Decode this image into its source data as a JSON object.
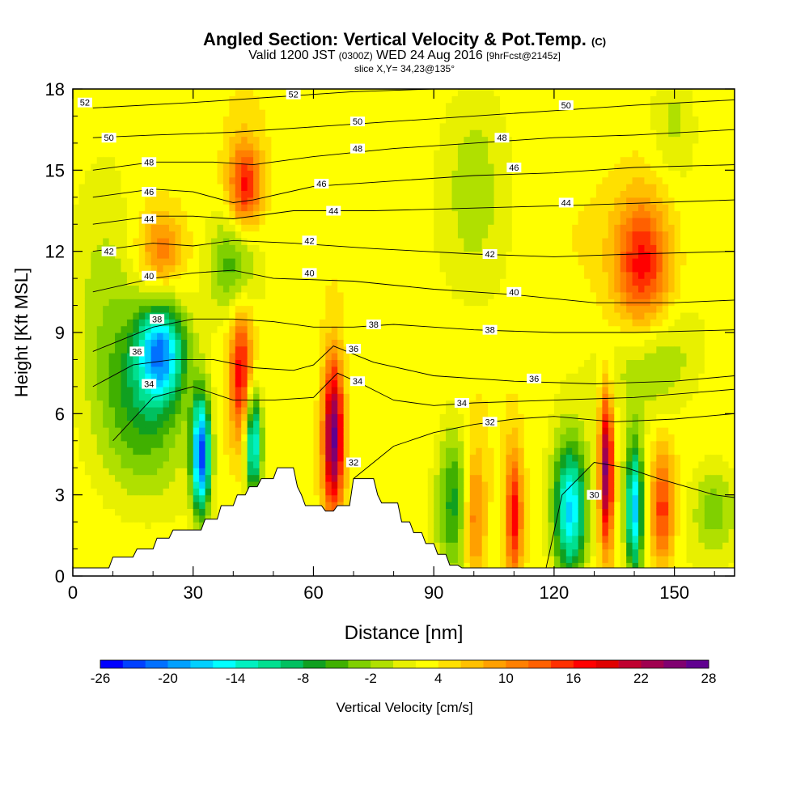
{
  "title": {
    "main": "Angled Section: Vertical Velocity & Pot.Temp.",
    "main_tag": "(C)",
    "valid_label": "Valid 1200 JST",
    "valid_tag": "(0300Z)",
    "valid_date": "WED 24 Aug 2016",
    "forecast_tag": "[9hrFcst@2145z]",
    "slice": "slice X,Y= 34,23@135°"
  },
  "chart_data": {
    "type": "heatmap",
    "xlabel": "Distance [nm]",
    "ylabel": "Height [Kft MSL]",
    "xlim": [
      0,
      165
    ],
    "ylim": [
      0,
      18
    ],
    "x_ticks": [
      0,
      30,
      60,
      90,
      120,
      150
    ],
    "y_ticks": [
      0,
      3,
      6,
      9,
      12,
      15,
      18
    ],
    "colorbar": {
      "label": "Vertical Velocity [cm/s]",
      "ticks": [
        -26,
        -20,
        -14,
        -8,
        -2,
        4,
        10,
        16,
        22,
        28
      ],
      "colors": [
        "#0000ff",
        "#0040ff",
        "#0070ff",
        "#00a0ff",
        "#00d0ff",
        "#00ffff",
        "#00f0c0",
        "#00e090",
        "#00c060",
        "#10a020",
        "#40b000",
        "#80d000",
        "#b0e000",
        "#e8f000",
        "#ffff00",
        "#ffe000",
        "#ffc000",
        "#ffa000",
        "#ff8000",
        "#ff6000",
        "#ff3000",
        "#ff0000",
        "#e00000",
        "#c00030",
        "#a00050",
        "#800070",
        "#600090"
      ]
    },
    "terrain_kft": [
      [
        0,
        0.3
      ],
      [
        9,
        0.3
      ],
      [
        10,
        0.7
      ],
      [
        15,
        0.7
      ],
      [
        16,
        1
      ],
      [
        20,
        1
      ],
      [
        21,
        1.4
      ],
      [
        24,
        1.4
      ],
      [
        25,
        1.7
      ],
      [
        32,
        1.7
      ],
      [
        33,
        2.1
      ],
      [
        36,
        2.1
      ],
      [
        37,
        2.6
      ],
      [
        40,
        2.6
      ],
      [
        41,
        3
      ],
      [
        43,
        3
      ],
      [
        44,
        3.3
      ],
      [
        46,
        3.3
      ],
      [
        47,
        3.6
      ],
      [
        50,
        3.6
      ],
      [
        51,
        4
      ],
      [
        55,
        4
      ],
      [
        56,
        3.3
      ],
      [
        57,
        3
      ],
      [
        58,
        2.6
      ],
      [
        62,
        2.6
      ],
      [
        63,
        2.4
      ],
      [
        65,
        2.4
      ],
      [
        66,
        2.6
      ],
      [
        69,
        2.6
      ],
      [
        70,
        3.6
      ],
      [
        75,
        3.6
      ],
      [
        76,
        3
      ],
      [
        77,
        2.7
      ],
      [
        81,
        2.7
      ],
      [
        82,
        2
      ],
      [
        84,
        2
      ],
      [
        85,
        1.6
      ],
      [
        87,
        1.6
      ],
      [
        88,
        1.2
      ],
      [
        90,
        1.2
      ],
      [
        91,
        0.8
      ],
      [
        93,
        0.8
      ],
      [
        94,
        0.4
      ],
      [
        96,
        0.4
      ],
      [
        97,
        0.3
      ],
      [
        165,
        0.3
      ]
    ],
    "velocity_cells": [
      {
        "x": 22,
        "y": 8.3,
        "v": -18,
        "sx": 4,
        "sy": 1.2
      },
      {
        "x": 18,
        "y": 6.5,
        "v": -9,
        "sx": 8,
        "sy": 2.5
      },
      {
        "x": 32,
        "y": 4.5,
        "v": -26,
        "sx": 1.6,
        "sy": 1.5
      },
      {
        "x": 45,
        "y": 5,
        "v": -20,
        "sx": 1.5,
        "sy": 1.4
      },
      {
        "x": 40,
        "y": 11.5,
        "v": -8,
        "sx": 4,
        "sy": 1.3
      },
      {
        "x": 95,
        "y": 2.8,
        "v": -10,
        "sx": 3,
        "sy": 2
      },
      {
        "x": 124,
        "y": 2.4,
        "v": -20,
        "sx": 3,
        "sy": 1.8
      },
      {
        "x": 140,
        "y": 2.5,
        "v": -20,
        "sx": 1.6,
        "sy": 1.8
      },
      {
        "x": 145,
        "y": 8,
        "v": -6,
        "sx": 8,
        "sy": 1.5
      },
      {
        "x": 160,
        "y": 2.5,
        "v": -6,
        "sx": 4,
        "sy": 1.2
      },
      {
        "x": 43,
        "y": 14.4,
        "v": 14,
        "sx": 3,
        "sy": 1.2
      },
      {
        "x": 42,
        "y": 7.5,
        "v": 14,
        "sx": 2,
        "sy": 1.8
      },
      {
        "x": 65,
        "y": 5.2,
        "v": 24,
        "sx": 1.8,
        "sy": 2
      },
      {
        "x": 110,
        "y": 2.2,
        "v": 14,
        "sx": 1.5,
        "sy": 1.8
      },
      {
        "x": 100,
        "y": 2.2,
        "v": 10,
        "sx": 2,
        "sy": 1.8
      },
      {
        "x": 133,
        "y": 4,
        "v": 22,
        "sx": 1.2,
        "sy": 2
      },
      {
        "x": 142,
        "y": 11.5,
        "v": 14,
        "sx": 5,
        "sy": 1.8
      },
      {
        "x": 147,
        "y": 2.5,
        "v": 12,
        "sx": 2,
        "sy": 1.5
      },
      {
        "x": 22,
        "y": 12,
        "v": 8,
        "sx": 4,
        "sy": 1
      },
      {
        "x": 8,
        "y": 11,
        "v": -4,
        "sx": 6,
        "sy": 3
      },
      {
        "x": 100,
        "y": 15,
        "v": -4,
        "sx": 6,
        "sy": 3
      },
      {
        "x": 150,
        "y": 17,
        "v": -4,
        "sx": 4,
        "sy": 1.5
      }
    ],
    "isentropes": [
      {
        "label": "30",
        "points": [
          [
            118,
            0.3
          ],
          [
            122,
            3
          ],
          [
            130,
            4.2
          ],
          [
            138,
            4
          ],
          [
            146,
            3.6
          ],
          [
            160,
            3
          ],
          [
            165,
            2.9
          ]
        ]
      },
      {
        "label": "32",
        "points": [
          [
            70,
            3.6
          ],
          [
            80,
            4.8
          ],
          [
            90,
            5.3
          ],
          [
            100,
            5.6
          ],
          [
            110,
            5.8
          ],
          [
            120,
            5.9
          ],
          [
            135,
            5.7
          ],
          [
            150,
            5.8
          ],
          [
            165,
            6
          ]
        ]
      },
      {
        "label": "34",
        "points": [
          [
            10,
            5
          ],
          [
            20,
            6.6
          ],
          [
            30,
            7
          ],
          [
            40,
            6.5
          ],
          [
            50,
            6.5
          ],
          [
            60,
            6.6
          ],
          [
            66,
            7.5
          ],
          [
            72,
            7.1
          ],
          [
            80,
            6.5
          ],
          [
            90,
            6.3
          ],
          [
            100,
            6.4
          ],
          [
            120,
            6.5
          ],
          [
            140,
            6.6
          ],
          [
            165,
            6.9
          ]
        ]
      },
      {
        "label": "36",
        "points": [
          [
            5,
            7
          ],
          [
            15,
            7.8
          ],
          [
            25,
            8
          ],
          [
            35,
            8
          ],
          [
            45,
            7.7
          ],
          [
            55,
            7.6
          ],
          [
            60,
            7.8
          ],
          [
            65,
            8.5
          ],
          [
            75,
            7.9
          ],
          [
            90,
            7.4
          ],
          [
            110,
            7.2
          ],
          [
            130,
            7.1
          ],
          [
            150,
            7.2
          ],
          [
            165,
            7.4
          ]
        ]
      },
      {
        "label": "38",
        "points": [
          [
            5,
            8.3
          ],
          [
            20,
            9.2
          ],
          [
            30,
            9.5
          ],
          [
            40,
            9.5
          ],
          [
            50,
            9.4
          ],
          [
            60,
            9.2
          ],
          [
            70,
            9.2
          ],
          [
            80,
            9.3
          ],
          [
            100,
            9.1
          ],
          [
            120,
            9
          ],
          [
            140,
            9
          ],
          [
            165,
            9.1
          ]
        ]
      },
      {
        "label": "40",
        "points": [
          [
            5,
            10.5
          ],
          [
            20,
            11
          ],
          [
            30,
            11.2
          ],
          [
            40,
            11.3
          ],
          [
            50,
            11
          ],
          [
            70,
            10.9
          ],
          [
            90,
            10.6
          ],
          [
            110,
            10.4
          ],
          [
            130,
            10.1
          ],
          [
            150,
            10.1
          ],
          [
            165,
            10.2
          ]
        ]
      },
      {
        "label": "42",
        "points": [
          [
            5,
            12
          ],
          [
            20,
            12.3
          ],
          [
            30,
            12.2
          ],
          [
            40,
            12.4
          ],
          [
            55,
            12.3
          ],
          [
            75,
            12.1
          ],
          [
            100,
            11.9
          ],
          [
            120,
            11.8
          ],
          [
            140,
            11.9
          ],
          [
            165,
            12
          ]
        ]
      },
      {
        "label": "44",
        "points": [
          [
            5,
            13
          ],
          [
            20,
            13.3
          ],
          [
            30,
            13.3
          ],
          [
            40,
            13.2
          ],
          [
            55,
            13.5
          ],
          [
            75,
            13.5
          ],
          [
            100,
            13.6
          ],
          [
            125,
            13.7
          ],
          [
            145,
            13.8
          ],
          [
            165,
            13.9
          ]
        ]
      },
      {
        "label": "46",
        "points": [
          [
            5,
            14
          ],
          [
            20,
            14.3
          ],
          [
            30,
            14.2
          ],
          [
            40,
            13.8
          ],
          [
            45,
            13.9
          ],
          [
            60,
            14.4
          ],
          [
            80,
            14.6
          ],
          [
            100,
            14.8
          ],
          [
            120,
            14.9
          ],
          [
            140,
            15.1
          ],
          [
            165,
            15.2
          ]
        ]
      },
      {
        "label": "48",
        "points": [
          [
            5,
            15
          ],
          [
            20,
            15.3
          ],
          [
            35,
            15.3
          ],
          [
            45,
            15.2
          ],
          [
            60,
            15.5
          ],
          [
            80,
            15.8
          ],
          [
            100,
            16
          ],
          [
            120,
            16.2
          ],
          [
            140,
            16.3
          ],
          [
            165,
            16.5
          ]
        ]
      },
      {
        "label": "50",
        "points": [
          [
            5,
            16.2
          ],
          [
            20,
            16.3
          ],
          [
            40,
            16.4
          ],
          [
            60,
            16.6
          ],
          [
            80,
            16.8
          ],
          [
            100,
            17
          ],
          [
            120,
            17.2
          ],
          [
            140,
            17.4
          ],
          [
            165,
            17.6
          ]
        ]
      },
      {
        "label": "52",
        "points": [
          [
            5,
            17.3
          ],
          [
            30,
            17.5
          ],
          [
            50,
            17.7
          ],
          [
            70,
            17.9
          ],
          [
            90,
            18
          ]
        ]
      }
    ],
    "contour_labels": [
      {
        "text": "52",
        "x": 3,
        "y": 17.5
      },
      {
        "text": "52",
        "x": 55,
        "y": 17.8
      },
      {
        "text": "50",
        "x": 9,
        "y": 16.2
      },
      {
        "text": "50",
        "x": 71,
        "y": 16.8
      },
      {
        "text": "50",
        "x": 123,
        "y": 17.4
      },
      {
        "text": "48",
        "x": 19,
        "y": 15.3
      },
      {
        "text": "48",
        "x": 71,
        "y": 15.8
      },
      {
        "text": "48",
        "x": 107,
        "y": 16.2
      },
      {
        "text": "46",
        "x": 19,
        "y": 14.2
      },
      {
        "text": "46",
        "x": 62,
        "y": 14.5
      },
      {
        "text": "46",
        "x": 110,
        "y": 15.1
      },
      {
        "text": "44",
        "x": 19,
        "y": 13.2
      },
      {
        "text": "44",
        "x": 65,
        "y": 13.5
      },
      {
        "text": "44",
        "x": 123,
        "y": 13.8
      },
      {
        "text": "42",
        "x": 9,
        "y": 12
      },
      {
        "text": "42",
        "x": 59,
        "y": 12.4
      },
      {
        "text": "42",
        "x": 104,
        "y": 11.9
      },
      {
        "text": "40",
        "x": 19,
        "y": 11.1
      },
      {
        "text": "40",
        "x": 59,
        "y": 11.2
      },
      {
        "text": "40",
        "x": 110,
        "y": 10.5
      },
      {
        "text": "38",
        "x": 21,
        "y": 9.5
      },
      {
        "text": "38",
        "x": 75,
        "y": 9.3
      },
      {
        "text": "38",
        "x": 104,
        "y": 9.1
      },
      {
        "text": "36",
        "x": 16,
        "y": 8.3
      },
      {
        "text": "36",
        "x": 70,
        "y": 8.4
      },
      {
        "text": "36",
        "x": 115,
        "y": 7.3
      },
      {
        "text": "34",
        "x": 19,
        "y": 7.1
      },
      {
        "text": "34",
        "x": 71,
        "y": 7.2
      },
      {
        "text": "34",
        "x": 97,
        "y": 6.4
      },
      {
        "text": "32",
        "x": 104,
        "y": 5.7
      },
      {
        "text": "32",
        "x": 70,
        "y": 4.2
      },
      {
        "text": "30",
        "x": 130,
        "y": 3
      }
    ]
  }
}
